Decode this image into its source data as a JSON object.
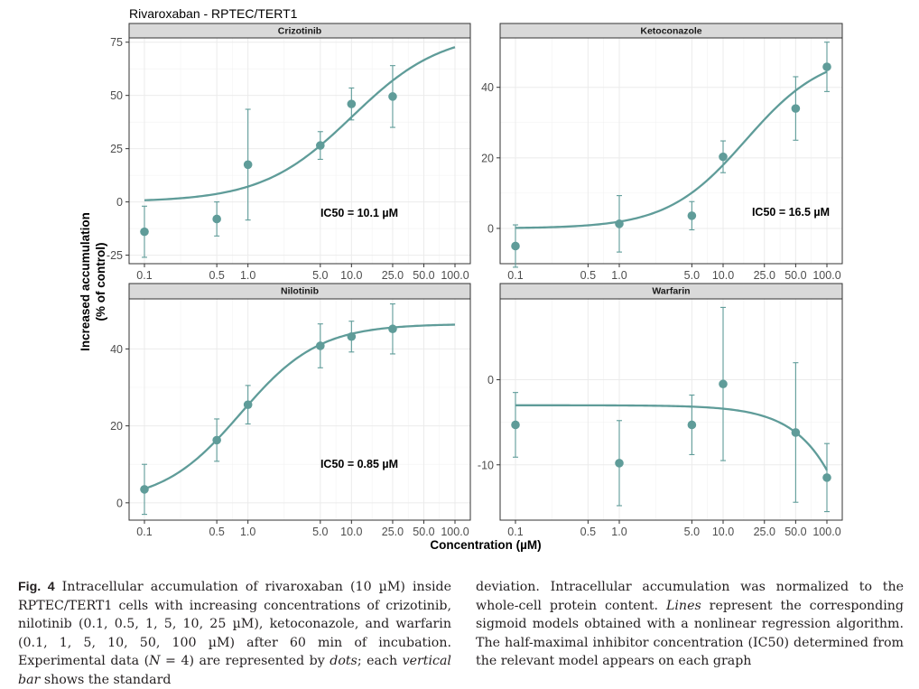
{
  "figure_title": "Rivaroxaban - RPTEC/TERT1",
  "y_axis_label_line1": "Increased accumulation",
  "y_axis_label_line2": "(% of control)",
  "x_axis_label": "Concentration (µM)",
  "colors": {
    "series": "#5f9c99",
    "strip_bg": "#d9d9d9",
    "grid": "#ebebeb",
    "frame": "#333333"
  },
  "x_tick_labels": [
    "0.1",
    "0.5",
    "1.0",
    "5.0",
    "10.0",
    "25.0",
    "50.0",
    "100.0"
  ],
  "x_tick_values": [
    0.1,
    0.5,
    1,
    5,
    10,
    25,
    50,
    100
  ],
  "chart_data": [
    {
      "type": "scatter",
      "title": "Crizotinib",
      "x_scale": "log",
      "xlim": [
        0.1,
        100
      ],
      "ylim": [
        -29,
        77
      ],
      "y_ticks": [
        -25,
        0,
        25,
        50,
        75
      ],
      "y_tick_labels": [
        "-25",
        "0",
        "25",
        "50",
        "75"
      ],
      "annotation": "IC50 = 10.1 µM",
      "points": [
        {
          "x": 0.1,
          "y": -14,
          "sd": 12
        },
        {
          "x": 0.5,
          "y": -8,
          "sd": 8
        },
        {
          "x": 1,
          "y": 17.5,
          "sd": 26
        },
        {
          "x": 5,
          "y": 26.5,
          "sd": 6.5
        },
        {
          "x": 10,
          "y": 46,
          "sd": 7.5
        },
        {
          "x": 25,
          "y": 49.5,
          "sd": 14.5
        }
      ],
      "curve": {
        "bottom": 0,
        "top": 80,
        "ic50": 10.1,
        "hill": 1,
        "x_range": [
          0.1,
          100
        ]
      }
    },
    {
      "type": "scatter",
      "title": "Ketoconazole",
      "x_scale": "log",
      "xlim": [
        0.1,
        100
      ],
      "ylim": [
        -10,
        54
      ],
      "y_ticks": [
        0,
        20,
        40
      ],
      "y_tick_labels": [
        "0",
        "20",
        "40"
      ],
      "annotation": "IC50 = 16.5 µM",
      "points": [
        {
          "x": 0.1,
          "y": -5,
          "sd": 6
        },
        {
          "x": 1,
          "y": 1.3,
          "sd": 8
        },
        {
          "x": 5,
          "y": 3.6,
          "sd": 4
        },
        {
          "x": 10,
          "y": 20.3,
          "sd": 4.5
        },
        {
          "x": 50,
          "y": 34,
          "sd": 9
        },
        {
          "x": 100,
          "y": 45.8,
          "sd": 7
        }
      ],
      "curve": {
        "bottom": 0,
        "top": 50,
        "ic50": 16.5,
        "hill": 1.15,
        "x_range": [
          0.1,
          100
        ]
      }
    },
    {
      "type": "scatter",
      "title": "Nilotinib",
      "x_scale": "log",
      "xlim": [
        0.1,
        100
      ],
      "ylim": [
        -4.5,
        53
      ],
      "y_ticks": [
        0,
        20,
        40
      ],
      "y_tick_labels": [
        "0",
        "20",
        "40"
      ],
      "annotation": "IC50 = 0.85 µM",
      "points": [
        {
          "x": 0.1,
          "y": 3.5,
          "sd": 6.5
        },
        {
          "x": 0.5,
          "y": 16.3,
          "sd": 5.5
        },
        {
          "x": 1,
          "y": 25.5,
          "sd": 5
        },
        {
          "x": 5,
          "y": 40.8,
          "sd": 5.7
        },
        {
          "x": 10,
          "y": 43.2,
          "sd": 4
        },
        {
          "x": 25,
          "y": 45.2,
          "sd": 6.5
        }
      ],
      "curve": {
        "bottom": 0,
        "top": 46.5,
        "ic50": 0.85,
        "hill": 1.15,
        "x_range": [
          0.1,
          100
        ]
      }
    },
    {
      "type": "scatter",
      "title": "Warfarin",
      "x_scale": "log",
      "xlim": [
        0.1,
        100
      ],
      "ylim": [
        -16.5,
        9.5
      ],
      "y_ticks": [
        -10,
        0
      ],
      "y_tick_labels": [
        "-10",
        "0"
      ],
      "annotation": "",
      "points": [
        {
          "x": 0.1,
          "y": -5.3,
          "sd": 3.8
        },
        {
          "x": 1,
          "y": -9.8,
          "sd": 5
        },
        {
          "x": 5,
          "y": -5.3,
          "sd": 3.5
        },
        {
          "x": 10,
          "y": -0.5,
          "sd": 9
        },
        {
          "x": 50,
          "y": -6.2,
          "sd": 8.2
        },
        {
          "x": 100,
          "y": -11.5,
          "sd": 4
        }
      ],
      "curve": {
        "bottom": -3,
        "top": -163,
        "ic50": 1000,
        "hill": 1.3,
        "x_range": [
          0.1,
          100
        ]
      }
    }
  ],
  "caption": {
    "label": "Fig. 4",
    "col1_a": " Intracellular accumulation of rivaroxaban (10 µM) inside RPTEC/TERT1 cells with increasing concentrations of crizotinib, nilotinib (0.1, 0.5, 1, 5, 10, 25 µM), ketoconazole, and warfarin (0.1, 1, 5, 10, 50, 100 µM) after 60 min of incubation. Experimental data (",
    "col1_n": "N",
    "col1_b": " = 4) are represented by ",
    "col1_dots": "dots",
    "col1_c": "; each ",
    "col1_vbar": "vertical bar",
    "col1_d": " shows the standard",
    "col2_a": "deviation. Intracellular accumulation was normalized to the whole-cell protein content. ",
    "col2_lines": "Lines",
    "col2_b": " represent the corresponding sigmoid models obtained with a nonlinear regression algorithm. The half-maximal inhibitor concentration (IC50) determined from the relevant model appears on each graph"
  }
}
